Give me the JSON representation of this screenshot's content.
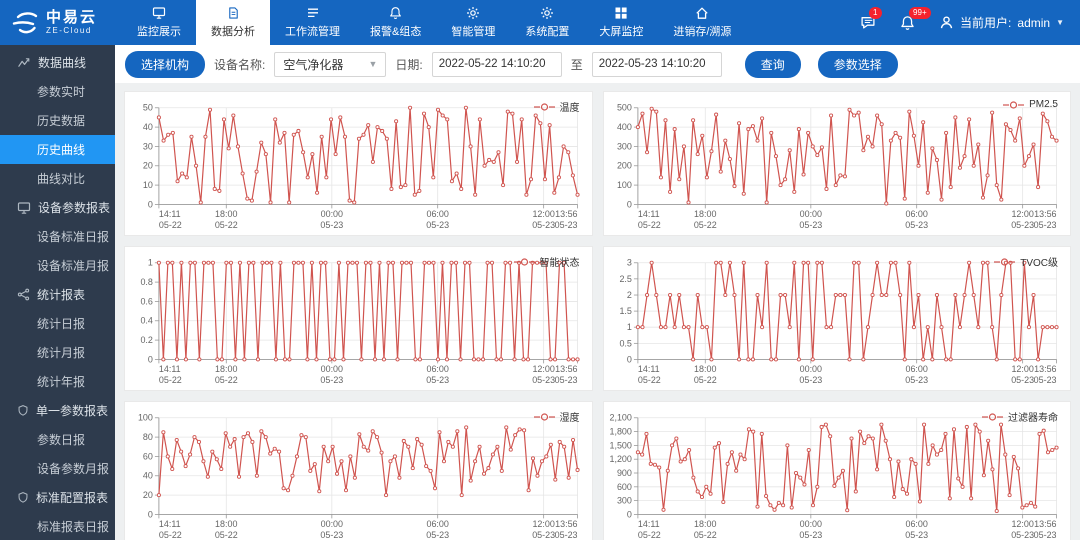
{
  "brand": {
    "name_cn": "中易云",
    "name_en": "ZE-Cloud"
  },
  "colors": {
    "nav_blue": "#1566c0",
    "sidebar_bg": "#2e3b4d",
    "sidebar_active": "#2196f3",
    "line_red": "#d0544f",
    "badge_red": "#f5222d"
  },
  "topnav": {
    "items": [
      {
        "key": "monitor-display",
        "label": "监控展示",
        "icon": "monitor-icon",
        "active": false
      },
      {
        "key": "data-analysis",
        "label": "数据分析",
        "icon": "document-icon",
        "active": true
      },
      {
        "key": "workflow-management",
        "label": "工作流管理",
        "icon": "workflow-icon",
        "active": false
      },
      {
        "key": "alarm-config",
        "label": "报警&组态",
        "icon": "bell-icon",
        "active": false
      },
      {
        "key": "smart-management",
        "label": "智能管理",
        "icon": "smart-gear-icon",
        "active": false
      },
      {
        "key": "system-config",
        "label": "系统配置",
        "icon": "gear-icon",
        "active": false
      },
      {
        "key": "big-screen-monitor",
        "label": "大屏监控",
        "icon": "grid-icon",
        "active": false
      },
      {
        "key": "inventory-trace",
        "label": "进销存/溯源",
        "icon": "home-icon",
        "active": false
      }
    ],
    "messages_badge": "1",
    "alerts_badge": "99+",
    "user_label": "当前用户:",
    "user_name": "admin"
  },
  "sidebar": {
    "items": [
      {
        "key": "data-curve",
        "label": "数据曲线",
        "group": true,
        "icon": "curve-icon"
      },
      {
        "key": "param-realtime",
        "label": "参数实时"
      },
      {
        "key": "history-data",
        "label": "历史数据"
      },
      {
        "key": "history-curve",
        "label": "历史曲线",
        "active": true
      },
      {
        "key": "curve-compare",
        "label": "曲线对比"
      },
      {
        "key": "device-param-report",
        "label": "设备参数报表",
        "group": true,
        "icon": "monitor-icon"
      },
      {
        "key": "device-std-daily",
        "label": "设备标准日报"
      },
      {
        "key": "device-std-monthly",
        "label": "设备标准月报"
      },
      {
        "key": "stat-report",
        "label": "统计报表",
        "group": true,
        "icon": "share-icon"
      },
      {
        "key": "stat-daily",
        "label": "统计日报"
      },
      {
        "key": "stat-monthly",
        "label": "统计月报"
      },
      {
        "key": "stat-yearly",
        "label": "统计年报"
      },
      {
        "key": "single-param-report",
        "label": "单一参数报表",
        "group": true,
        "icon": "shield-icon"
      },
      {
        "key": "param-daily",
        "label": "参数日报"
      },
      {
        "key": "device-param-monthly",
        "label": "设备参数月报"
      },
      {
        "key": "std-config-report",
        "label": "标准配置报表",
        "group": true,
        "icon": "shield-icon"
      },
      {
        "key": "std-report-daily",
        "label": "标准报表日报"
      }
    ]
  },
  "filters": {
    "select_org_button": "选择机构",
    "device_label": "设备名称:",
    "device_value": "空气净化器",
    "date_label": "日期:",
    "date_from": "2022-05-22 14:10:20",
    "date_to_separator": "至",
    "date_to": "2022-05-23 14:10:20",
    "query_button": "查询",
    "param_select_button": "参数选择"
  },
  "chart_data": [
    {
      "type": "line",
      "key": "temperature",
      "series_name": "温度",
      "color": "#d0544f",
      "ylim": [
        0,
        50
      ],
      "ytick_labels": [
        "0",
        "10",
        "20",
        "30",
        "40",
        "50"
      ],
      "x_ticks": [
        {
          "frac": 0.0,
          "line1": "14:11",
          "line2": "05-22"
        },
        {
          "frac": 0.161,
          "line1": "18:00",
          "line2": "05-22"
        },
        {
          "frac": 0.413,
          "line1": "00:00",
          "line2": "05-23"
        },
        {
          "frac": 0.666,
          "line1": "06:00",
          "line2": "05-23"
        },
        {
          "frac": 0.919,
          "line1": "12:00",
          "line2": "05-23"
        },
        {
          "frac": 1.0,
          "line1": "13:56",
          "line2": "05-23"
        }
      ],
      "values": [
        45,
        33,
        36,
        37,
        12,
        16,
        14,
        35,
        20,
        1,
        35,
        49,
        8,
        7,
        44,
        29,
        46,
        30,
        16,
        3,
        2,
        17,
        32,
        26,
        1,
        44,
        32,
        37,
        1,
        36,
        38,
        27,
        14,
        26,
        6,
        35,
        14,
        44,
        26,
        45,
        35,
        2,
        1,
        34,
        36,
        41,
        22,
        40,
        38,
        34,
        8,
        43,
        9,
        10,
        50,
        5,
        7,
        47,
        40,
        14,
        49,
        46,
        44,
        12,
        16,
        8,
        50,
        30,
        5,
        44,
        20,
        23,
        22,
        27,
        10,
        48,
        47,
        22,
        44,
        5,
        13,
        46,
        42,
        13,
        41,
        6,
        14,
        30,
        27,
        15,
        5
      ]
    },
    {
      "type": "line",
      "key": "pm25",
      "series_name": "PM2.5",
      "color": "#d0544f",
      "ylim": [
        0,
        500
      ],
      "ytick_labels": [
        "0",
        "100",
        "200",
        "300",
        "400",
        "500"
      ],
      "x_ticks": [
        {
          "frac": 0.0,
          "line1": "14:11",
          "line2": "05-22"
        },
        {
          "frac": 0.161,
          "line1": "18:00",
          "line2": "05-22"
        },
        {
          "frac": 0.413,
          "line1": "00:00",
          "line2": "05-23"
        },
        {
          "frac": 0.666,
          "line1": "06:00",
          "line2": "05-23"
        },
        {
          "frac": 0.919,
          "line1": "12:00",
          "line2": "05-23"
        },
        {
          "frac": 1.0,
          "line1": "13:56",
          "line2": "05-23"
        }
      ],
      "values": [
        400,
        470,
        270,
        495,
        480,
        140,
        435,
        65,
        390,
        130,
        300,
        10,
        435,
        260,
        355,
        140,
        275,
        465,
        170,
        330,
        235,
        95,
        420,
        55,
        390,
        405,
        330,
        445,
        10,
        370,
        250,
        100,
        130,
        280,
        65,
        390,
        155,
        370,
        300,
        255,
        295,
        80,
        460,
        100,
        150,
        145,
        490,
        460,
        475,
        280,
        350,
        300,
        460,
        415,
        5,
        330,
        370,
        345,
        30,
        480,
        355,
        200,
        425,
        60,
        290,
        230,
        25,
        370,
        90,
        450,
        190,
        250,
        440,
        200,
        310,
        35,
        150,
        475,
        100,
        25,
        415,
        385,
        330,
        445,
        200,
        250,
        310,
        90,
        470,
        430,
        350,
        330
      ]
    },
    {
      "type": "line",
      "key": "smart-status",
      "series_name": "智能状态",
      "color": "#d0544f",
      "ylim": [
        0,
        1
      ],
      "ytick_labels": [
        "0",
        "0.2",
        "0.4",
        "0.6",
        "0.8",
        "1"
      ],
      "x_ticks": [
        {
          "frac": 0.0,
          "line1": "14:11",
          "line2": "05-22"
        },
        {
          "frac": 0.161,
          "line1": "18:00",
          "line2": "05-22"
        },
        {
          "frac": 0.413,
          "line1": "00:00",
          "line2": "05-23"
        },
        {
          "frac": 0.666,
          "line1": "06:00",
          "line2": "05-23"
        },
        {
          "frac": 0.919,
          "line1": "12:00",
          "line2": "05-23"
        },
        {
          "frac": 1.0,
          "line1": "13:56",
          "line2": "05-23"
        }
      ],
      "values": [
        1,
        0,
        1,
        1,
        0,
        1,
        0,
        1,
        1,
        0,
        1,
        1,
        1,
        0,
        0,
        1,
        1,
        0,
        1,
        0,
        1,
        1,
        0,
        1,
        1,
        1,
        0,
        1,
        0,
        0,
        1,
        1,
        1,
        0,
        1,
        0,
        1,
        1,
        0,
        0,
        1,
        0,
        1,
        1,
        1,
        0,
        1,
        1,
        0,
        1,
        0,
        1,
        1,
        0,
        1,
        1,
        1,
        0,
        0,
        1,
        1,
        1,
        0,
        1,
        0,
        1,
        1,
        0,
        1,
        1,
        0,
        0,
        0,
        1,
        1,
        0,
        0,
        1,
        1,
        0,
        1,
        0,
        0,
        1,
        1,
        1,
        1,
        0,
        0,
        1,
        1,
        0,
        0,
        0
      ]
    },
    {
      "type": "line",
      "key": "tvoc-level",
      "series_name": "TVOC级",
      "color": "#d0544f",
      "ylim": [
        0,
        3
      ],
      "ytick_labels": [
        "0",
        "0.5",
        "1",
        "1.5",
        "2",
        "2.5",
        "3"
      ],
      "x_ticks": [
        {
          "frac": 0.0,
          "line1": "14:11",
          "line2": "05-22"
        },
        {
          "frac": 0.161,
          "line1": "18:00",
          "line2": "05-22"
        },
        {
          "frac": 0.413,
          "line1": "00:00",
          "line2": "05-23"
        },
        {
          "frac": 0.666,
          "line1": "06:00",
          "line2": "05-23"
        },
        {
          "frac": 0.919,
          "line1": "12:00",
          "line2": "05-23"
        },
        {
          "frac": 1.0,
          "line1": "13:56",
          "line2": "05-23"
        }
      ],
      "values": [
        1,
        1,
        2,
        3,
        2,
        1,
        1,
        2,
        1,
        2,
        1,
        1,
        0,
        2,
        1,
        1,
        0,
        3,
        3,
        2,
        3,
        2,
        0,
        3,
        0,
        0,
        2,
        1,
        3,
        0,
        0,
        2,
        2,
        1,
        3,
        0,
        3,
        3,
        0,
        3,
        3,
        1,
        1,
        2,
        2,
        2,
        0,
        3,
        3,
        0,
        1,
        2,
        3,
        2,
        2,
        3,
        3,
        2,
        0,
        3,
        1,
        2,
        0,
        1,
        0,
        2,
        1,
        0,
        0,
        2,
        1,
        2,
        3,
        2,
        1,
        3,
        3,
        1,
        0,
        2,
        3,
        3,
        0,
        0,
        3,
        1,
        2,
        0,
        1,
        1,
        1,
        1
      ]
    },
    {
      "type": "line",
      "key": "humidity",
      "series_name": "湿度",
      "color": "#d0544f",
      "ylim": [
        0,
        100
      ],
      "ytick_labels": [
        "0",
        "20",
        "40",
        "60",
        "80",
        "100"
      ],
      "x_ticks": [
        {
          "frac": 0.0,
          "line1": "14:11",
          "line2": "05-22"
        },
        {
          "frac": 0.161,
          "line1": "18:00",
          "line2": "05-22"
        },
        {
          "frac": 0.413,
          "line1": "00:00",
          "line2": "05-23"
        },
        {
          "frac": 0.666,
          "line1": "06:00",
          "line2": "05-23"
        },
        {
          "frac": 0.919,
          "line1": "12:00",
          "line2": "05-23"
        },
        {
          "frac": 1.0,
          "line1": "13:56",
          "line2": "05-23"
        }
      ],
      "values": [
        20,
        85,
        60,
        47,
        77,
        65,
        50,
        62,
        80,
        75,
        55,
        39,
        65,
        57,
        47,
        84,
        70,
        78,
        39,
        80,
        84,
        75,
        40,
        86,
        80,
        63,
        68,
        65,
        27,
        25,
        40,
        60,
        82,
        80,
        45,
        52,
        24,
        70,
        55,
        70,
        42,
        55,
        25,
        60,
        38,
        83,
        70,
        66,
        86,
        80,
        64,
        20,
        55,
        60,
        38,
        76,
        70,
        48,
        78,
        72,
        50,
        45,
        27,
        85,
        55,
        75,
        70,
        86,
        20,
        90,
        35,
        55,
        70,
        42,
        48,
        62,
        70,
        45,
        90,
        67,
        82,
        88,
        87,
        25,
        58,
        40,
        55,
        60,
        72,
        36,
        75,
        70,
        38,
        77,
        46
      ]
    },
    {
      "type": "line",
      "key": "filter-life",
      "series_name": "过滤器寿命",
      "color": "#d0544f",
      "ylim": [
        0,
        2100
      ],
      "ytick_labels": [
        "0",
        "300",
        "600",
        "900",
        "1,200",
        "1,500",
        "1,800",
        "2,100"
      ],
      "x_ticks": [
        {
          "frac": 0.0,
          "line1": "14:11",
          "line2": "05-22"
        },
        {
          "frac": 0.161,
          "line1": "18:00",
          "line2": "05-22"
        },
        {
          "frac": 0.413,
          "line1": "00:00",
          "line2": "05-23"
        },
        {
          "frac": 0.666,
          "line1": "06:00",
          "line2": "05-23"
        },
        {
          "frac": 0.919,
          "line1": "12:00",
          "line2": "05-23"
        },
        {
          "frac": 1.0,
          "line1": "13:56",
          "line2": "05-23"
        }
      ],
      "values": [
        1350,
        1300,
        1750,
        1100,
        1080,
        1020,
        100,
        950,
        1500,
        1650,
        1150,
        1200,
        1400,
        800,
        500,
        380,
        600,
        450,
        1450,
        1550,
        270,
        1100,
        1350,
        950,
        1300,
        1200,
        1850,
        1800,
        170,
        1750,
        400,
        200,
        100,
        250,
        200,
        1500,
        150,
        900,
        800,
        650,
        1400,
        200,
        600,
        1900,
        1950,
        1700,
        620,
        800,
        950,
        90,
        1650,
        500,
        1800,
        1550,
        1700,
        1650,
        980,
        1950,
        1600,
        1200,
        380,
        1150,
        550,
        450,
        1200,
        1100,
        280,
        1950,
        1100,
        1500,
        1300,
        1400,
        1750,
        350,
        1850,
        780,
        600,
        1900,
        350,
        1950,
        1800,
        850,
        1600,
        980,
        75,
        1950,
        1300,
        420,
        1250,
        1000,
        150,
        200,
        250,
        170,
        1750,
        1820,
        1350,
        1400,
        1450
      ]
    }
  ]
}
